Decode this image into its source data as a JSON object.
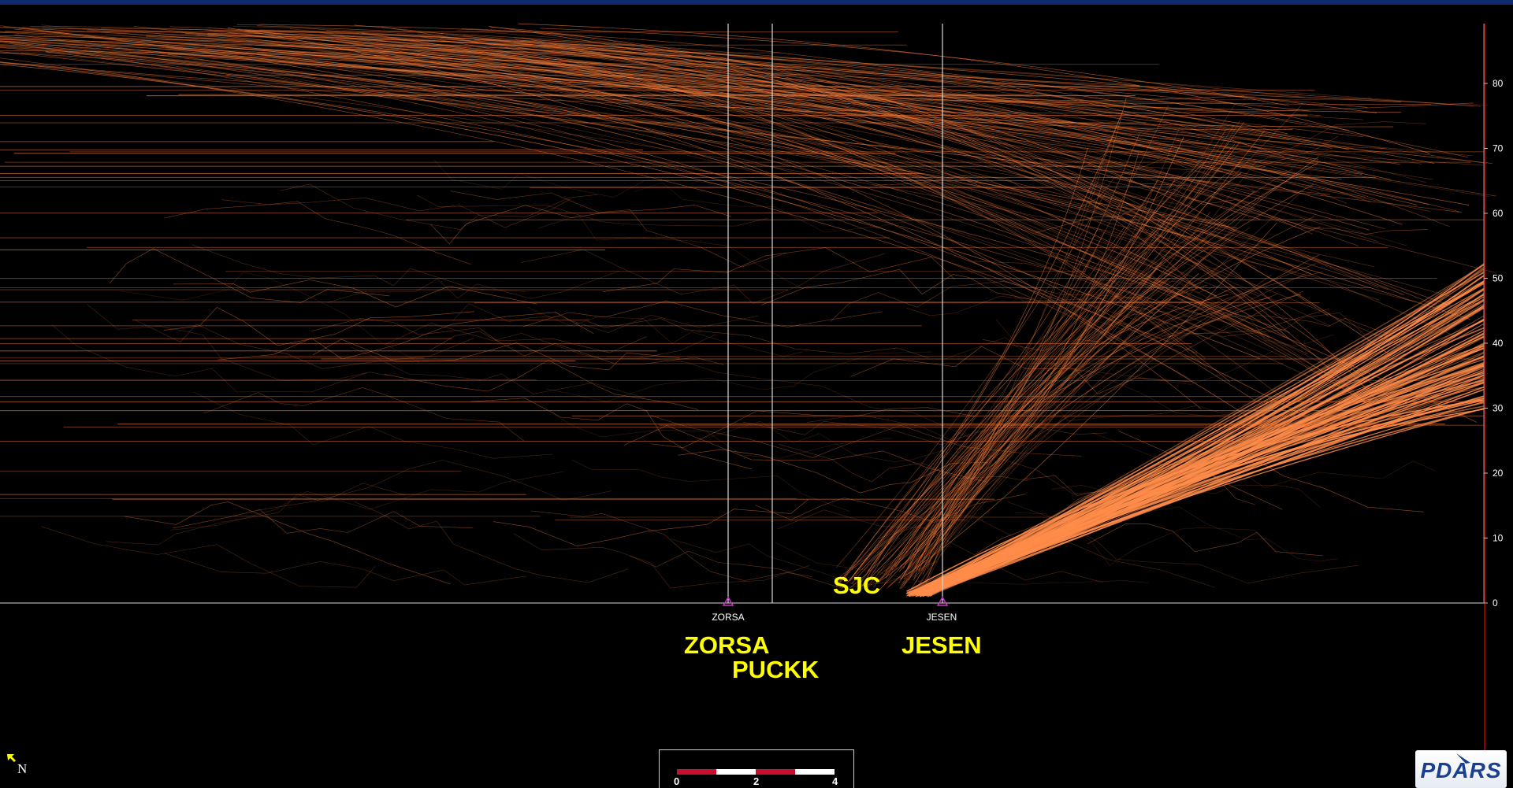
{
  "chart_data": {
    "type": "line",
    "title": "",
    "xlabel": "",
    "ylabel": "",
    "y_axis_position": "right",
    "ylim": [
      0,
      90
    ],
    "y_ticks": [
      "0",
      "10",
      "20",
      "30",
      "40",
      "50",
      "60",
      "70",
      "80"
    ],
    "grid": false,
    "fixes": [
      {
        "name": "ZORSA",
        "small_label": "ZORSA",
        "big_label": "ZORSA"
      },
      {
        "name": "PUCKK",
        "small_label": "",
        "big_label": "PUCKK"
      },
      {
        "name": "JESEN",
        "small_label": "JESEN",
        "big_label": "JESEN"
      }
    ],
    "airport_label": "SJC",
    "colors": {
      "track": "#f07a3a",
      "track_dense": "#ff8c4a",
      "fix_line": "#d9d9d9",
      "fix_marker": "#cc33cc",
      "big_label": "#ffff00",
      "axis": "#d9d9d9",
      "right_border": "#c00000",
      "header_bar": "#0d2a6e"
    }
  },
  "overlay": {
    "north_label": "N",
    "north_icon": "north-arrow-icon",
    "scale_bar": {
      "labels": [
        "0",
        "2",
        "4"
      ],
      "colors": [
        "#c8102e",
        "#ffffff"
      ]
    },
    "logo_text": "PDARS"
  }
}
